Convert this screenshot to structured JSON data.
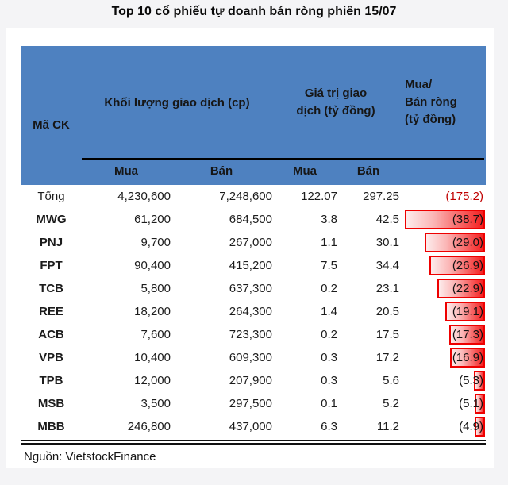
{
  "title": "Top 10 cổ phiếu tự doanh bán ròng phiên 15/07",
  "table": {
    "header": {
      "ticker": "Mã CK",
      "volume_group": "Khối lượng giao dịch (cp)",
      "value_group_lines": [
        "Giá trị giao",
        "dịch (tỷ đồng)"
      ],
      "net_group_lines": [
        "Mua/",
        "Bán ròng",
        "(tỷ đồng)"
      ],
      "sub_labels": [
        "Mua",
        "Bán",
        "Mua",
        "Bán"
      ]
    },
    "total_row": {
      "ticker": "Tổng",
      "vol_buy": "4,230,600",
      "vol_sell": "7,248,600",
      "val_buy": "122.07",
      "val_sell": "297.25",
      "net": "(175.2)"
    },
    "rows": [
      {
        "ticker": "MWG",
        "vol_buy": "61,200",
        "vol_sell": "684,500",
        "val_buy": "3.8",
        "val_sell": "42.5",
        "net": "(38.7)",
        "net_value": 38.7
      },
      {
        "ticker": "PNJ",
        "vol_buy": "9,700",
        "vol_sell": "267,000",
        "val_buy": "1.1",
        "val_sell": "30.1",
        "net": "(29.0)",
        "net_value": 29.0
      },
      {
        "ticker": "FPT",
        "vol_buy": "90,400",
        "vol_sell": "415,200",
        "val_buy": "7.5",
        "val_sell": "34.4",
        "net": "(26.9)",
        "net_value": 26.9
      },
      {
        "ticker": "TCB",
        "vol_buy": "5,800",
        "vol_sell": "637,300",
        "val_buy": "0.2",
        "val_sell": "23.1",
        "net": "(22.9)",
        "net_value": 22.9
      },
      {
        "ticker": "REE",
        "vol_buy": "18,200",
        "vol_sell": "264,300",
        "val_buy": "1.4",
        "val_sell": "20.5",
        "net": "(19.1)",
        "net_value": 19.1
      },
      {
        "ticker": "ACB",
        "vol_buy": "7,600",
        "vol_sell": "723,300",
        "val_buy": "0.2",
        "val_sell": "17.5",
        "net": "(17.3)",
        "net_value": 17.3
      },
      {
        "ticker": "VPB",
        "vol_buy": "10,400",
        "vol_sell": "609,300",
        "val_buy": "0.3",
        "val_sell": "17.2",
        "net": "(16.9)",
        "net_value": 16.9
      },
      {
        "ticker": "TPB",
        "vol_buy": "12,000",
        "vol_sell": "207,900",
        "val_buy": "0.3",
        "val_sell": "5.6",
        "net": "(5.3)",
        "net_value": 5.3
      },
      {
        "ticker": "MSB",
        "vol_buy": "3,500",
        "vol_sell": "297,500",
        "val_buy": "0.1",
        "val_sell": "5.2",
        "net": "(5.1)",
        "net_value": 5.1
      },
      {
        "ticker": "MBB",
        "vol_buy": "246,800",
        "vol_sell": "437,000",
        "val_buy": "6.3",
        "val_sell": "11.2",
        "net": "(4.9)",
        "net_value": 4.9
      }
    ]
  },
  "footer": {
    "source": "Nguồn: VietstockFinance"
  },
  "colors": {
    "header_blue": "#4e81c0",
    "bar_border_red": "#ee0000",
    "bar_fill_red": "#f41f1f",
    "total_net_red": "#c00000",
    "page_background": "#f4f4f6",
    "card_background": "#ffffff"
  },
  "chart_data": {
    "type": "table",
    "title": "Top 10 cổ phiếu tự doanh bán ròng phiên 15/07",
    "columns": [
      "Mã CK",
      "Khối lượng giao dịch (cp) - Mua",
      "Khối lượng giao dịch (cp) - Bán",
      "Giá trị giao dịch (tỷ đồng) - Mua",
      "Giá trị giao dịch (tỷ đồng) - Bán",
      "Mua/Bán ròng (tỷ đồng)"
    ],
    "rows": [
      [
        "Tổng",
        4230600,
        7248600,
        122.07,
        297.25,
        -175.2
      ],
      [
        "MWG",
        61200,
        684500,
        3.8,
        42.5,
        -38.7
      ],
      [
        "PNJ",
        9700,
        267000,
        1.1,
        30.1,
        -29.0
      ],
      [
        "FPT",
        90400,
        415200,
        7.5,
        34.4,
        -26.9
      ],
      [
        "TCB",
        5800,
        637300,
        0.2,
        23.1,
        -22.9
      ],
      [
        "REE",
        18200,
        264300,
        1.4,
        20.5,
        -19.1
      ],
      [
        "ACB",
        7600,
        723300,
        0.2,
        17.5,
        -17.3
      ],
      [
        "VPB",
        10400,
        609300,
        0.3,
        17.2,
        -16.9
      ],
      [
        "TPB",
        12000,
        207900,
        0.3,
        5.6,
        -5.3
      ],
      [
        "MSB",
        3500,
        297500,
        0.1,
        5.2,
        -5.1
      ],
      [
        "MBB",
        246800,
        437000,
        6.3,
        11.2,
        -4.9
      ]
    ],
    "bars_column": "Mua/Bán ròng (tỷ đồng)",
    "bars_note": "right-anchored red gradient data bars, length proportional to |net|, max = 38.7",
    "source": "Nguồn: VietstockFinance"
  }
}
